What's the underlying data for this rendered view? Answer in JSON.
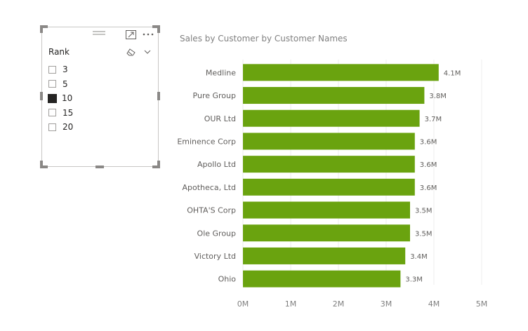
{
  "slicer": {
    "title": "Rank",
    "items": [
      {
        "label": "3",
        "checked": false
      },
      {
        "label": "5",
        "checked": false
      },
      {
        "label": "10",
        "checked": true
      },
      {
        "label": "15",
        "checked": false
      },
      {
        "label": "20",
        "checked": false
      }
    ],
    "icons": {
      "drag": "drag-grip-icon",
      "focus": "focus-mode-icon",
      "more": "more-options-icon",
      "clear": "eraser-icon",
      "dropdown": "chevron-down-icon"
    }
  },
  "chart": {
    "title": "Sales by Customer by Customer Names",
    "bar_color": "#6aa30f"
  },
  "chart_data": {
    "type": "bar",
    "orientation": "horizontal",
    "title": "Sales by Customer by Customer Names",
    "categories": [
      "Medline",
      "Pure Group",
      "OUR Ltd",
      "Eminence Corp",
      "Apollo Ltd",
      "Apotheca, Ltd",
      "OHTA'S Corp",
      "Ole Group",
      "Victory Ltd",
      "Ohio"
    ],
    "values": [
      4.1,
      3.8,
      3.7,
      3.6,
      3.6,
      3.6,
      3.5,
      3.5,
      3.4,
      3.3
    ],
    "data_labels": [
      "4.1M",
      "3.8M",
      "3.7M",
      "3.6M",
      "3.6M",
      "3.6M",
      "3.5M",
      "3.5M",
      "3.4M",
      "3.3M"
    ],
    "x_ticks": [
      0,
      1,
      2,
      3,
      4,
      5
    ],
    "x_tick_labels": [
      "0M",
      "1M",
      "2M",
      "3M",
      "4M",
      "5M"
    ],
    "xlim": [
      0,
      5
    ],
    "units": "millions",
    "grid": "vertical",
    "color": "#6aa30f"
  }
}
